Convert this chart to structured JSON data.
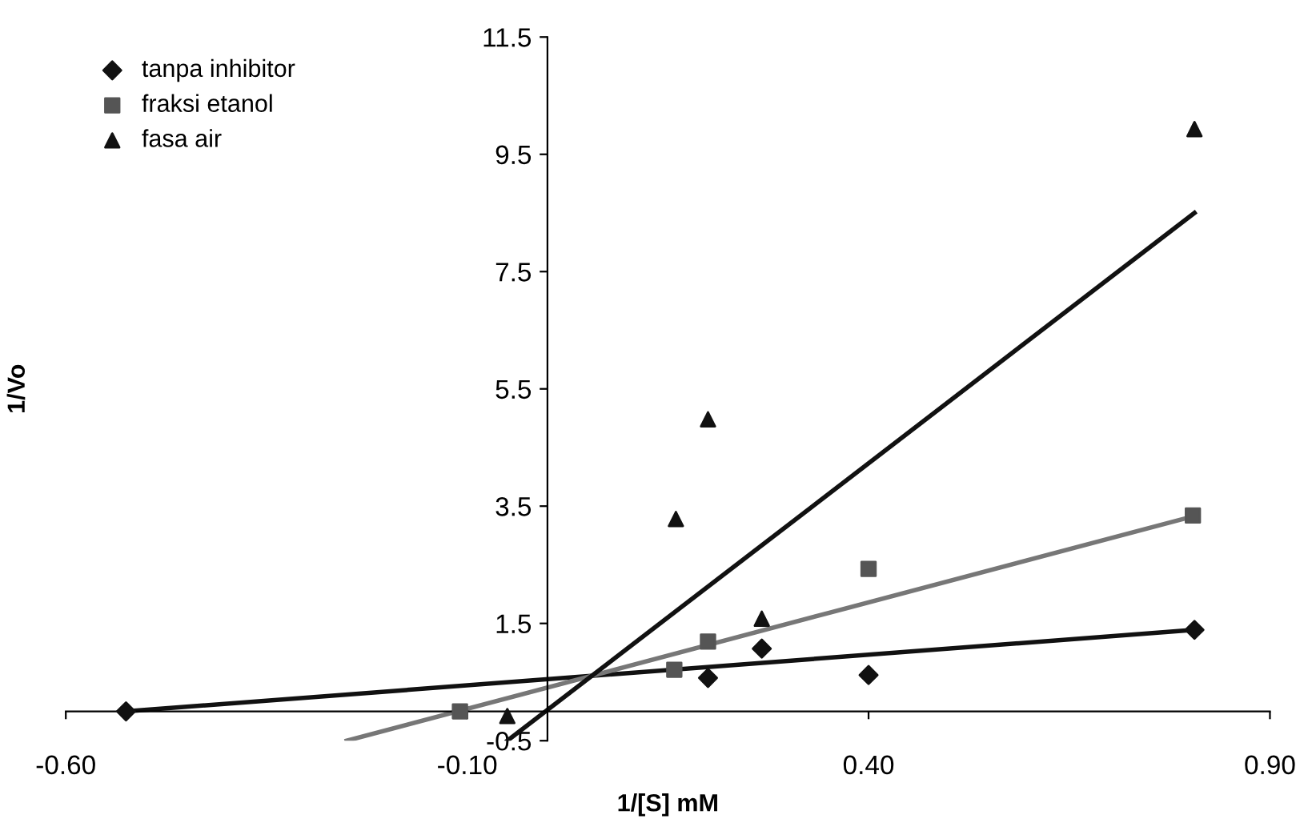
{
  "chart_data": {
    "type": "scatter",
    "xlabel": "1/[S] mM",
    "ylabel": "1/Vo",
    "xlim": [
      -0.6,
      0.9
    ],
    "xticks": [
      {
        "value": -0.6,
        "label": "-0.60"
      },
      {
        "value": -0.1,
        "label": "-0.10"
      },
      {
        "value": 0.4,
        "label": "0.40"
      },
      {
        "value": 0.9,
        "label": "0.90"
      }
    ],
    "ylim": [
      -0.5,
      11.5
    ],
    "yticks": [
      -0.5,
      1.5,
      3.5,
      5.5,
      7.5,
      9.5,
      11.5
    ],
    "grid": false,
    "legend": "top left",
    "series": [
      {
        "name": "tanpa inhibitor",
        "marker": "diamond",
        "color": "#111111",
        "x": [
          -0.525,
          0.2,
          0.267,
          0.4,
          0.806
        ],
        "values": [
          0.0,
          0.57,
          1.07,
          0.62,
          1.39
        ]
      },
      {
        "name": "fraksi etanol",
        "marker": "square",
        "color": "#555555",
        "x": [
          -0.109,
          0.158,
          0.2,
          0.4,
          0.804
        ],
        "values": [
          0.0,
          0.71,
          1.19,
          2.43,
          3.34
        ]
      },
      {
        "name": "fasa air",
        "marker": "triangle",
        "color": "#111111",
        "x": [
          -0.05,
          0.16,
          0.2,
          0.267,
          0.806
        ],
        "values": [
          -0.08,
          3.28,
          4.98,
          1.58,
          9.93
        ]
      },
      {
        "type": "line",
        "color": "#111111",
        "x": [
          -0.525,
          0.806
        ],
        "values": [
          0.0,
          1.39
        ]
      },
      {
        "type": "line",
        "color": "#777777",
        "x": [
          -0.25,
          0.8
        ],
        "values": [
          -0.5,
          3.31
        ]
      },
      {
        "type": "line",
        "color": "#111111",
        "x": [
          -0.05,
          0.806
        ],
        "values": [
          -0.5,
          8.5
        ]
      }
    ]
  }
}
